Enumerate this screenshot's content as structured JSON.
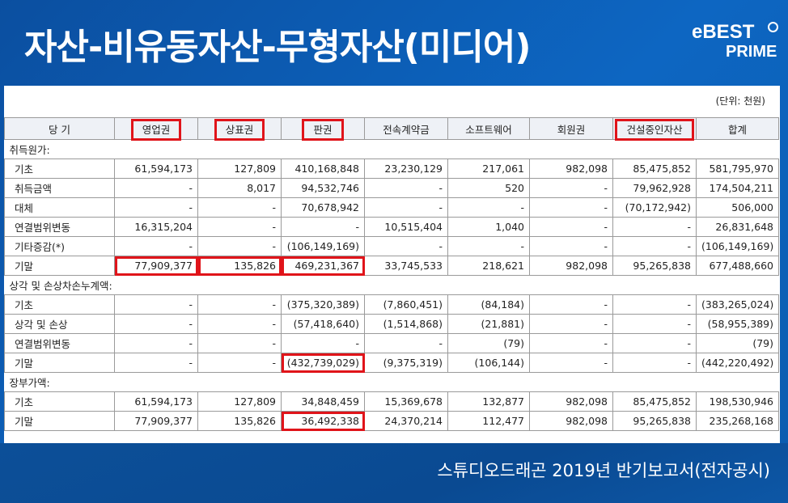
{
  "title": "자산-비유동자산-무형자산(미디어)",
  "logo": {
    "line1": "eBEST",
    "line2": "PRIME"
  },
  "unit": "(단위: 천원)",
  "caption": "스튜디오드래곤 2019년 반기보고서(전자공시)",
  "highlight_color": "#e0141a",
  "columns": [
    "당 기",
    "영업권",
    "상표권",
    "판권",
    "전속계약금",
    "소프트웨어",
    "회원권",
    "건설중인자산",
    "합계"
  ],
  "highlighted_columns": [
    1,
    2,
    3,
    7
  ],
  "rows": [
    {
      "section": "취득원가:"
    },
    {
      "label": "기초",
      "values": [
        "61,594,173",
        "127,809",
        "410,168,848",
        "23,230,129",
        "217,061",
        "982,098",
        "85,475,852",
        "581,795,970"
      ]
    },
    {
      "label": "취득금액",
      "values": [
        "-",
        "8,017",
        "94,532,746",
        "-",
        "520",
        "-",
        "79,962,928",
        "174,504,211"
      ]
    },
    {
      "label": "대체",
      "values": [
        "-",
        "-",
        "70,678,942",
        "-",
        "-",
        "-",
        "(70,172,942)",
        "506,000"
      ]
    },
    {
      "label": "연결범위변동",
      "values": [
        "16,315,204",
        "-",
        "-",
        "10,515,404",
        "1,040",
        "-",
        "-",
        "26,831,648"
      ]
    },
    {
      "label": "기타증감(*)",
      "values": [
        "-",
        "-",
        "(106,149,169)",
        "-",
        "-",
        "-",
        "-",
        "(106,149,169)"
      ]
    },
    {
      "label": "기말",
      "values": [
        "77,909,377",
        "135,826",
        "469,231,367",
        "33,745,533",
        "218,621",
        "982,098",
        "95,265,838",
        "677,488,660"
      ],
      "highlight": [
        0,
        1,
        2
      ]
    },
    {
      "section": "상각 및 손상차손누계액:"
    },
    {
      "label": "기초",
      "values": [
        "-",
        "-",
        "(375,320,389)",
        "(7,860,451)",
        "(84,184)",
        "-",
        "-",
        "(383,265,024)"
      ]
    },
    {
      "label": "상각 및 손상",
      "values": [
        "-",
        "-",
        "(57,418,640)",
        "(1,514,868)",
        "(21,881)",
        "-",
        "-",
        "(58,955,389)"
      ]
    },
    {
      "label": "연결범위변동",
      "values": [
        "-",
        "-",
        "-",
        "-",
        "(79)",
        "-",
        "-",
        "(79)"
      ]
    },
    {
      "label": "기말",
      "values": [
        "-",
        "-",
        "(432,739,029)",
        "(9,375,319)",
        "(106,144)",
        "-",
        "-",
        "(442,220,492)"
      ],
      "highlight": [
        2
      ]
    },
    {
      "section": "장부가액:"
    },
    {
      "label": "기초",
      "values": [
        "61,594,173",
        "127,809",
        "34,848,459",
        "15,369,678",
        "132,877",
        "982,098",
        "85,475,852",
        "198,530,946"
      ]
    },
    {
      "label": "기말",
      "values": [
        "77,909,377",
        "135,826",
        "36,492,338",
        "24,370,214",
        "112,477",
        "982,098",
        "95,265,838",
        "235,268,168"
      ],
      "highlight": [
        2
      ]
    }
  ]
}
